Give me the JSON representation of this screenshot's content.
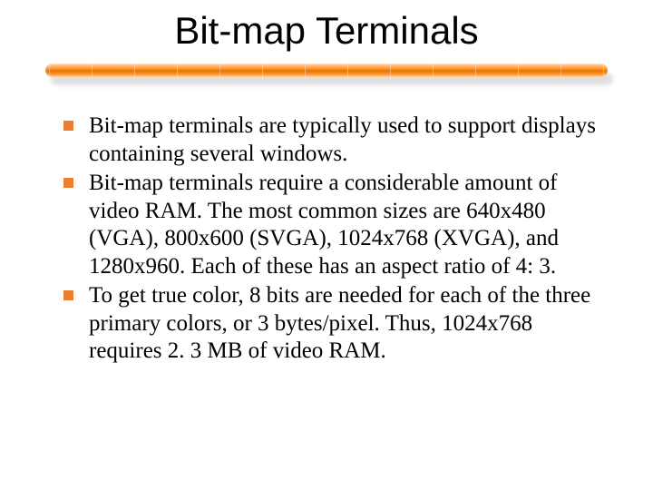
{
  "slide": {
    "title": "Bit-map Terminals",
    "title_color": "#000000",
    "title_fontsize": 42,
    "body_font": "Times New Roman",
    "body_fontsize": 25,
    "divider": {
      "gradient_top": "#ffd9b3",
      "gradient_mid": "#ff9933",
      "gradient_dark": "#e67300",
      "shadow_color": "#d9d9d9",
      "tick_count": 14
    },
    "bullet_color": "#ed7d31",
    "bullets": [
      "Bit-map terminals are typically used to support displays containing several windows.",
      "Bit-map terminals require a considerable amount of video RAM. The most common sizes are 640x480 (VGA), 800x600 (SVGA), 1024x768 (XVGA), and 1280x960. Each of these has an aspect ratio of 4: 3.",
      "To get true color, 8 bits are needed for each of the three primary colors, or 3 bytes/pixel. Thus, 1024x768 requires 2. 3 MB of video RAM."
    ]
  }
}
